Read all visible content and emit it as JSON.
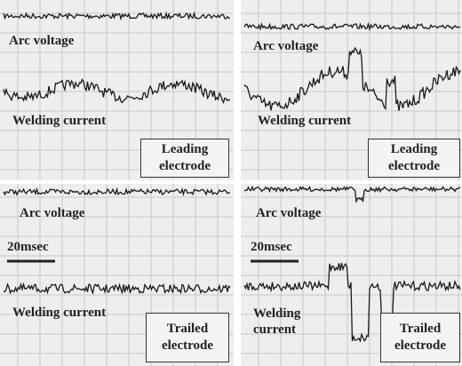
{
  "panels": [
    {
      "arc_label": "Arc voltage",
      "current_label": "Welding current",
      "electrode_label": "Leading electrode"
    },
    {
      "arc_label": "Arc voltage",
      "current_label": "Welding current",
      "electrode_label": "Leading electrode"
    },
    {
      "arc_label": "Arc voltage",
      "time_scale": "20msec",
      "current_label": "Welding current",
      "electrode_label": "Trailed electrode"
    },
    {
      "arc_label": "Arc voltage",
      "time_scale": "20msec",
      "current_label": "Welding current",
      "electrode_label": "Trailed electrode"
    }
  ]
}
